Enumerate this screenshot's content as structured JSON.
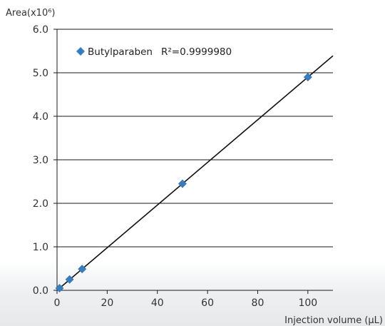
{
  "chart_data": {
    "type": "scatter",
    "ylabel": "Area(x10⁶)",
    "xlabel": "Injection volume (µL)",
    "xlim": [
      0,
      110
    ],
    "ylim": [
      0,
      6.0
    ],
    "x_ticks": [
      "0",
      "20",
      "40",
      "60",
      "80",
      "100"
    ],
    "y_ticks": [
      "0.0",
      "1.0",
      "2.0",
      "3.0",
      "4.0",
      "5.0",
      "6.0"
    ],
    "grid": "horizontal",
    "legend_position": "top-left",
    "series": [
      {
        "name": "Butylparaben",
        "marker": "diamond",
        "color": "#3a7dbf",
        "x": [
          1,
          5,
          10,
          50,
          100
        ],
        "y": [
          0.05,
          0.25,
          0.49,
          2.45,
          4.9
        ]
      }
    ],
    "fit": {
      "label": "R²=0.9999980",
      "color": "#111111",
      "slope": 0.049,
      "intercept": 0.0,
      "x_range": [
        0,
        110
      ]
    }
  }
}
